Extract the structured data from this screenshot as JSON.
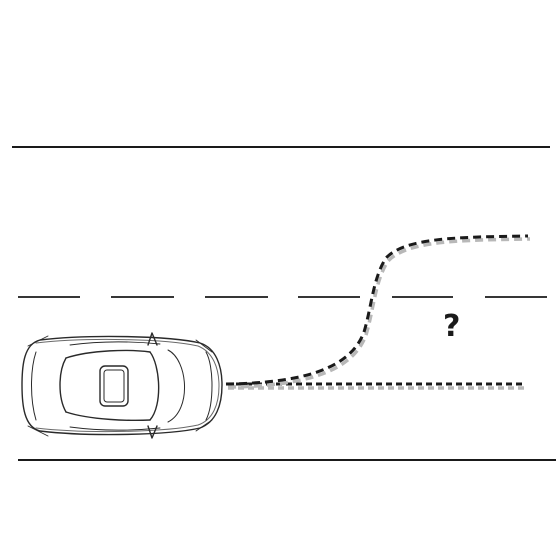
{
  "annotation": {
    "question_mark": "?"
  },
  "paths": {
    "options": [
      "lane-change-left",
      "stay-in-lane"
    ]
  },
  "colors": {
    "ink": "#1a1a1a",
    "shadow": "#b8b8b8",
    "background": "#ffffff"
  }
}
